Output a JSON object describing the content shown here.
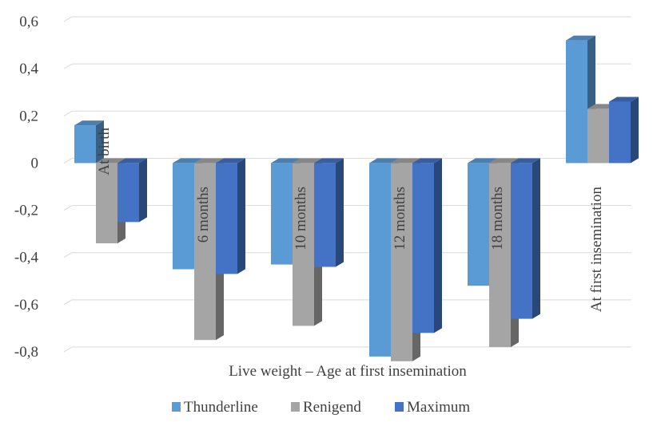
{
  "chart_data": {
    "type": "bar",
    "title": "",
    "xlabel": "Live weight –  Age at first insemination",
    "ylabel": "",
    "ylim": [
      -0.8,
      0.6
    ],
    "yticks": [
      0.6,
      0.4,
      0.2,
      0,
      -0.2,
      -0.4,
      -0.6,
      -0.8
    ],
    "ytick_labels": [
      "0,6",
      "0,4",
      "0,2",
      "0",
      "-0,2",
      "-0,4",
      "-0,6",
      "-0,8"
    ],
    "grid": true,
    "legend_position": "bottom",
    "categories": [
      "At birth",
      "6 months",
      "10 months",
      "12 months",
      "18  months",
      "At first insemination"
    ],
    "series": [
      {
        "name": "Thunderline",
        "color": "#5B9BD5",
        "values": [
          0.16,
          -0.45,
          -0.43,
          -0.82,
          -0.52,
          0.52
        ]
      },
      {
        "name": "Renigend",
        "color": "#A5A5A5",
        "values": [
          -0.34,
          -0.75,
          -0.69,
          -0.84,
          -0.78,
          0.23
        ]
      },
      {
        "name": "Maximum",
        "color": "#4472C4",
        "values": [
          -0.25,
          -0.47,
          -0.44,
          -0.72,
          -0.66,
          0.26
        ]
      }
    ]
  }
}
